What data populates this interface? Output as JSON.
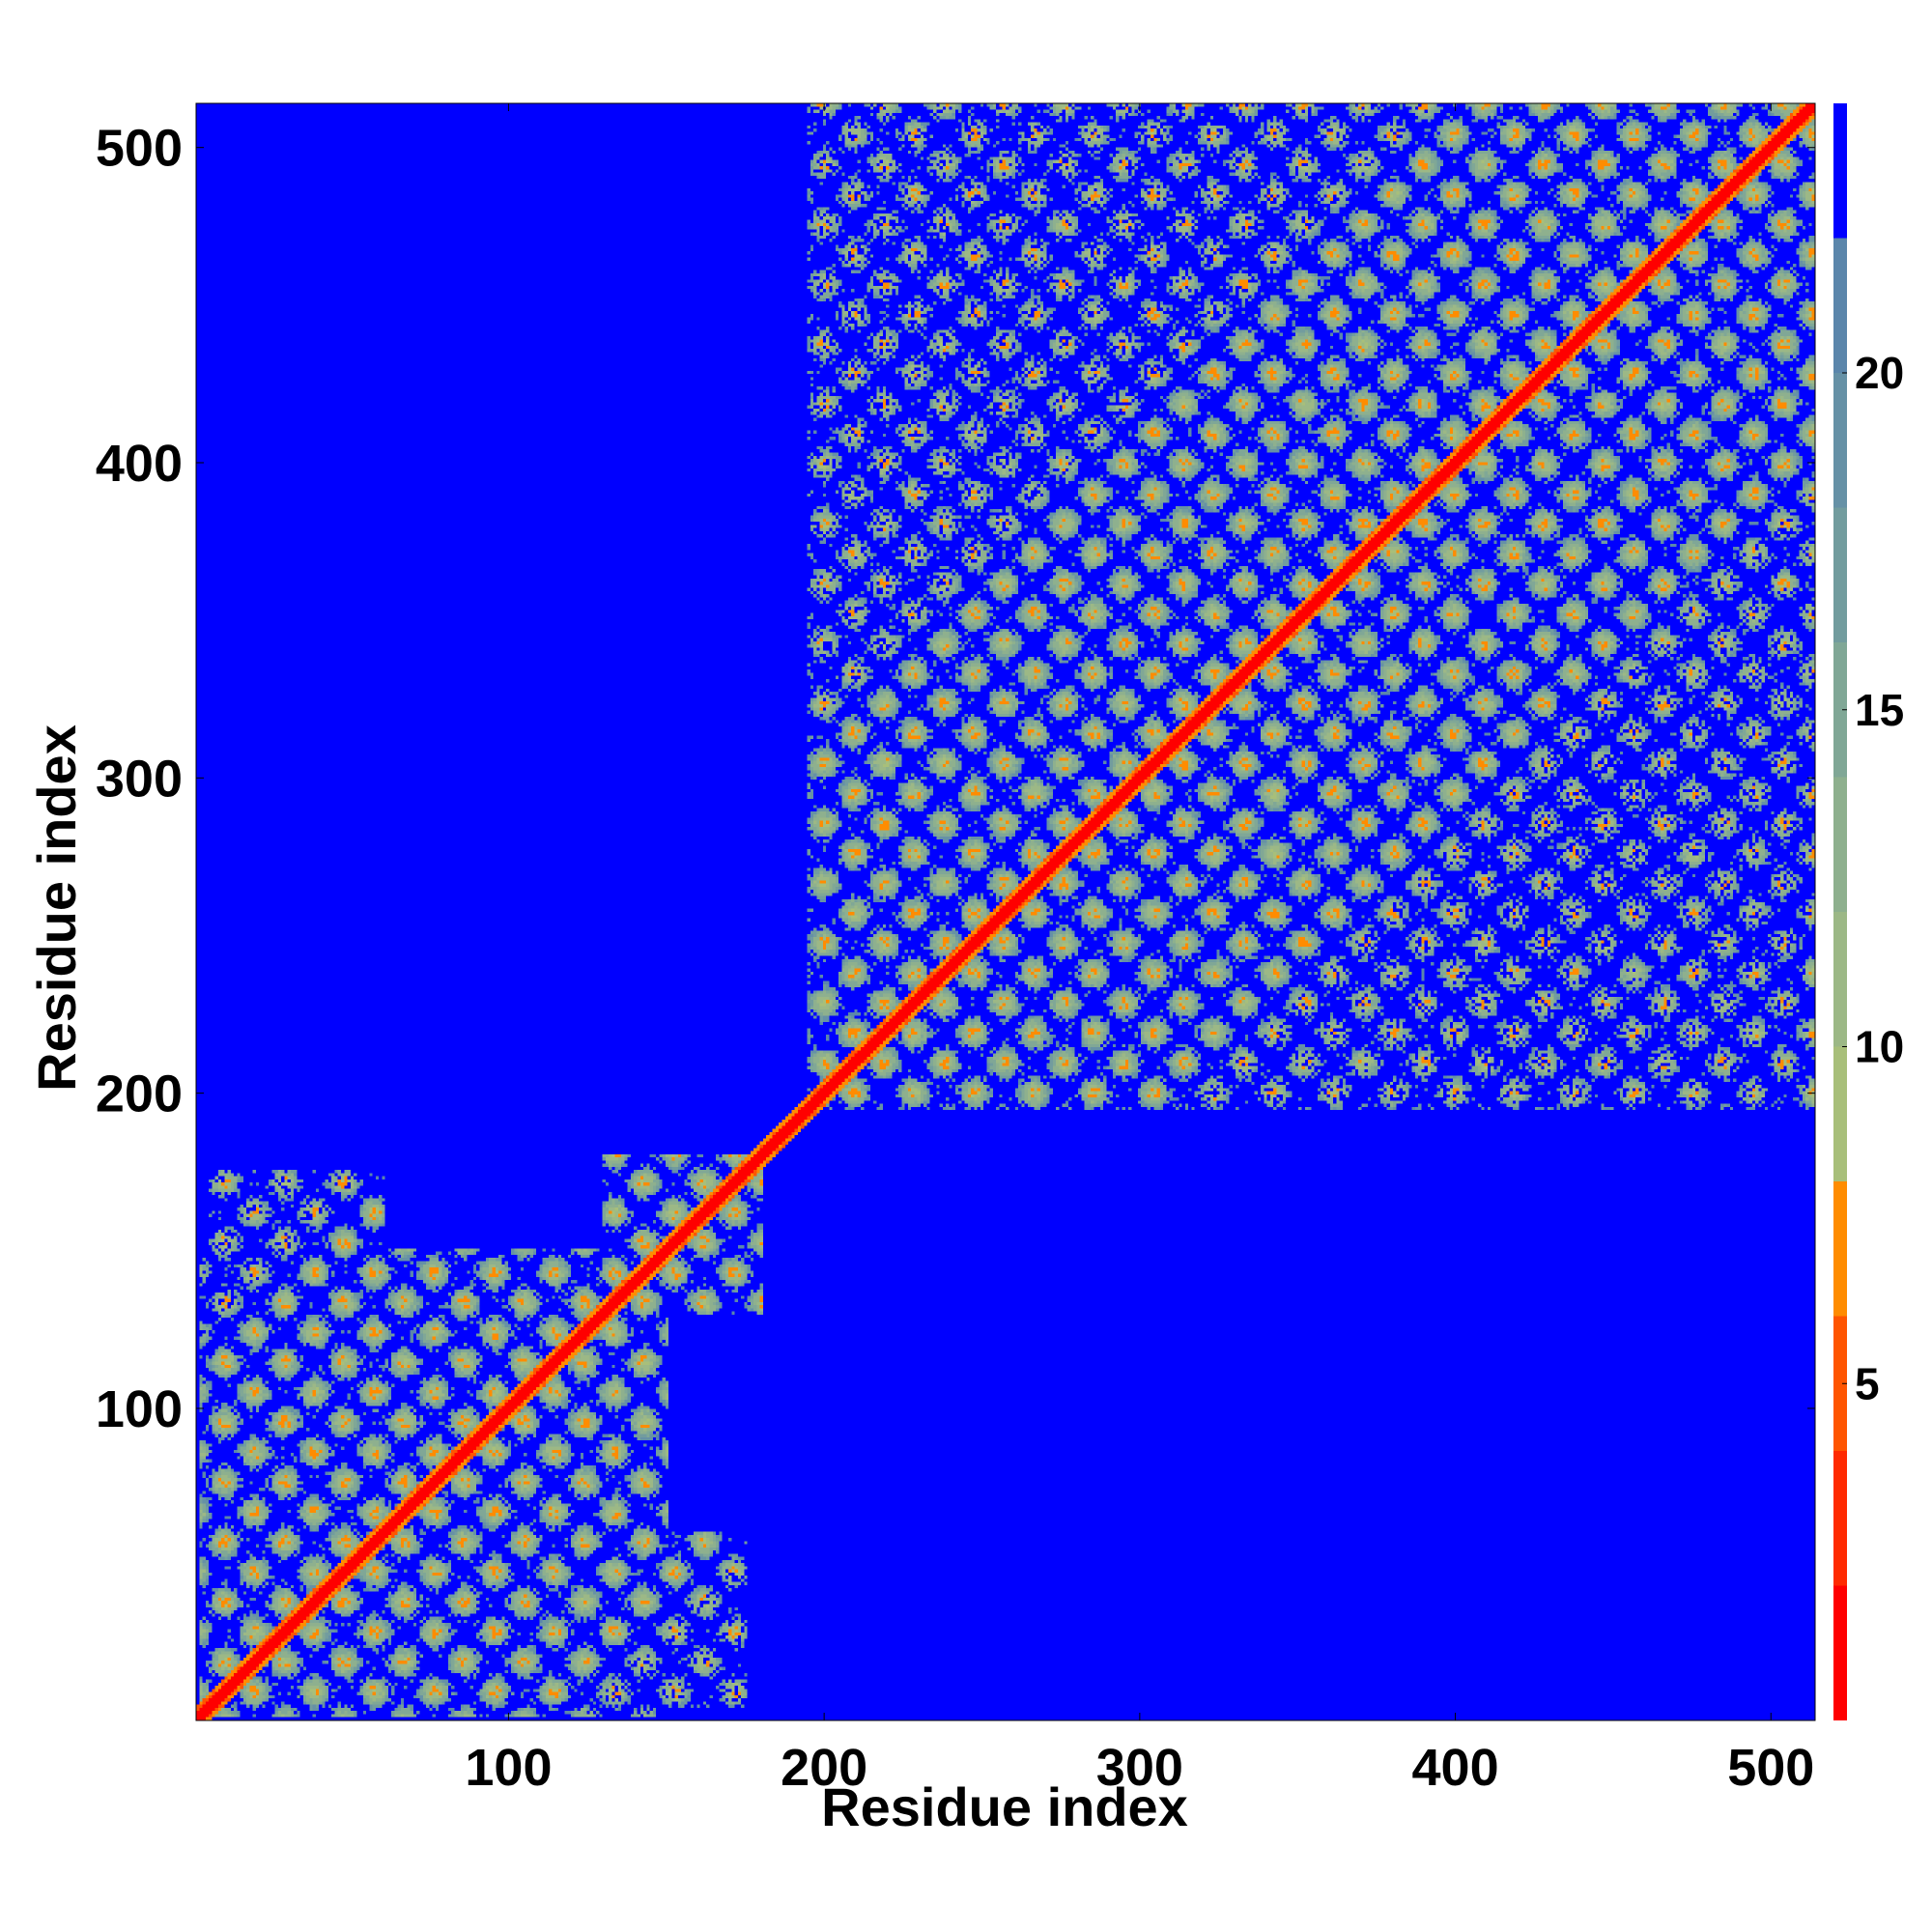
{
  "chart_data": {
    "type": "heatmap",
    "title": "",
    "xlabel": "Residue index",
    "ylabel": "Residue index",
    "n_residues": 514,
    "xlim": [
      1,
      514
    ],
    "ylim": [
      1,
      514
    ],
    "xticks": [
      100,
      200,
      300,
      400,
      500
    ],
    "yticks": [
      100,
      200,
      300,
      400,
      500
    ],
    "xtick_labels": [
      "100",
      "200",
      "300",
      "400",
      "500"
    ],
    "ytick_labels": [
      "100",
      "200",
      "300",
      "400",
      "500"
    ],
    "background_value": 24,
    "colorbar": {
      "range": [
        0,
        24
      ],
      "ticks": [
        5,
        10,
        15,
        20
      ],
      "tick_labels": [
        "5",
        "10",
        "15",
        "20"
      ],
      "levels": [
        {
          "from": 0,
          "to": 2,
          "color": "#ff0000"
        },
        {
          "from": 2,
          "to": 4,
          "color": "#ff2a00"
        },
        {
          "from": 4,
          "to": 6,
          "color": "#ff5500"
        },
        {
          "from": 6,
          "to": 8,
          "color": "#ff8c00"
        },
        {
          "from": 8,
          "to": 10,
          "color": "#a8bf7a"
        },
        {
          "from": 10,
          "to": 12,
          "color": "#9cb886"
        },
        {
          "from": 12,
          "to": 14,
          "color": "#8eb08e"
        },
        {
          "from": 14,
          "to": 16,
          "color": "#80a796"
        },
        {
          "from": 16,
          "to": 18,
          "color": "#729c9e"
        },
        {
          "from": 18,
          "to": 20,
          "color": "#6691a6"
        },
        {
          "from": 20,
          "to": 22,
          "color": "#5b86ab"
        },
        {
          "from": 22,
          "to": 24,
          "color": "#0000ff"
        }
      ]
    },
    "regions": [
      {
        "name": "domain-1-block",
        "x": [
          2,
          150
        ],
        "y": [
          2,
          150
        ]
      },
      {
        "name": "domain-1-arm",
        "x": [
          130,
          180
        ],
        "y": [
          130,
          180
        ]
      },
      {
        "name": "domain-1-lower-offdiag",
        "x": [
          140,
          175
        ],
        "y": [
          5,
          60
        ]
      },
      {
        "name": "domain-1-left-offdiag",
        "x": [
          5,
          30
        ],
        "y": [
          140,
          170
        ]
      },
      {
        "name": "domain-2-block",
        "x": [
          195,
          515
        ],
        "y": [
          195,
          515
        ]
      },
      {
        "name": "domain-2-upper-offdiag",
        "x": [
          195,
          260
        ],
        "y": [
          440,
          515
        ]
      },
      {
        "name": "domain-2-right-offdiag",
        "x": [
          440,
          515
        ],
        "y": [
          195,
          260
        ]
      }
    ]
  }
}
